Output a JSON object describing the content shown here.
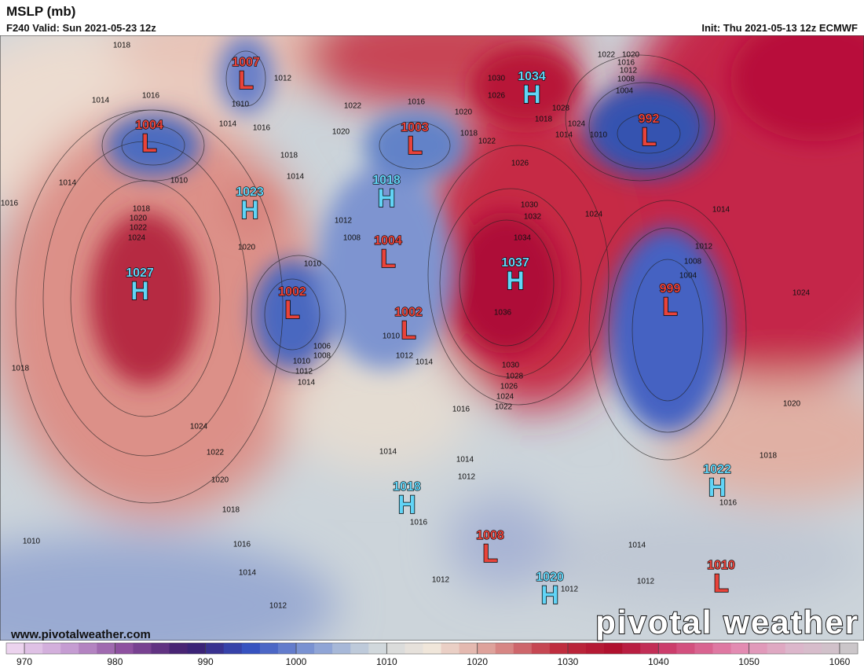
{
  "header": {
    "title": "MSLP (mb)",
    "valid": "F240 Valid: Sun 2021-05-23 12z",
    "init": "Init: Thu 2021-05-13 12z ECMWF"
  },
  "centers": [
    {
      "letter": "L",
      "value": 1007
    },
    {
      "letter": "L",
      "value": 1004
    },
    {
      "letter": "H",
      "value": 1023
    },
    {
      "letter": "H",
      "value": 1027
    },
    {
      "letter": "L",
      "value": 1003
    },
    {
      "letter": "H",
      "value": 1018
    },
    {
      "letter": "L",
      "value": 1004
    },
    {
      "letter": "L",
      "value": 1002
    },
    {
      "letter": "L",
      "value": 1002
    },
    {
      "letter": "H",
      "value": 1037
    },
    {
      "letter": "H",
      "value": 1034
    },
    {
      "letter": "L",
      "value": 992
    },
    {
      "letter": "L",
      "value": 999
    },
    {
      "letter": "H",
      "value": 1022
    },
    {
      "letter": "H",
      "value": 1018
    },
    {
      "letter": "L",
      "value": 1008
    },
    {
      "letter": "H",
      "value": 1020
    },
    {
      "letter": "L",
      "value": 1010
    }
  ],
  "contour_labels": [
    1018,
    1016,
    1014,
    1010,
    1012,
    1014,
    1016,
    1018,
    1014,
    1010,
    1014,
    1016,
    1018,
    1020,
    1022,
    1024,
    1020,
    1022,
    1020,
    1016,
    1020,
    1018,
    1022,
    1030,
    1026,
    1028,
    1018,
    1024,
    1014,
    1010,
    1022,
    1020,
    1016,
    1012,
    1008,
    1004,
    1026,
    1024,
    1014,
    1012,
    1008,
    1004,
    1024,
    1020,
    1018,
    1016,
    1014,
    1012,
    1012,
    1012,
    1016,
    1014,
    1012,
    1016,
    1022,
    1024,
    1026,
    1028,
    1030,
    1036,
    1034,
    1032,
    1030,
    1014,
    1012,
    1010,
    1008,
    1012,
    1010,
    1006,
    1008,
    1010,
    1012,
    1014,
    1014,
    1024,
    1022,
    1020,
    1018,
    1016,
    1014,
    1012,
    1010,
    1018
  ],
  "colorbar": {
    "lim": [
      968,
      1062
    ],
    "ticks": [
      970,
      980,
      990,
      1000,
      1010,
      1020,
      1030,
      1040,
      1050,
      1060
    ],
    "colors": [
      "#f2dcf2",
      "#c8a0d4",
      "#8a4c9c",
      "#3c1c6c",
      "#3450c0",
      "#8098d4",
      "#cdd6dc",
      "#f0e6da",
      "#dc9a94",
      "#c03040",
      "#b0102e",
      "#d04474",
      "#e488b0",
      "#dcb8cc",
      "#c8c8c8"
    ]
  },
  "footer": {
    "website": "www.pivotalweather.com",
    "watermark": "pivotal weather"
  }
}
